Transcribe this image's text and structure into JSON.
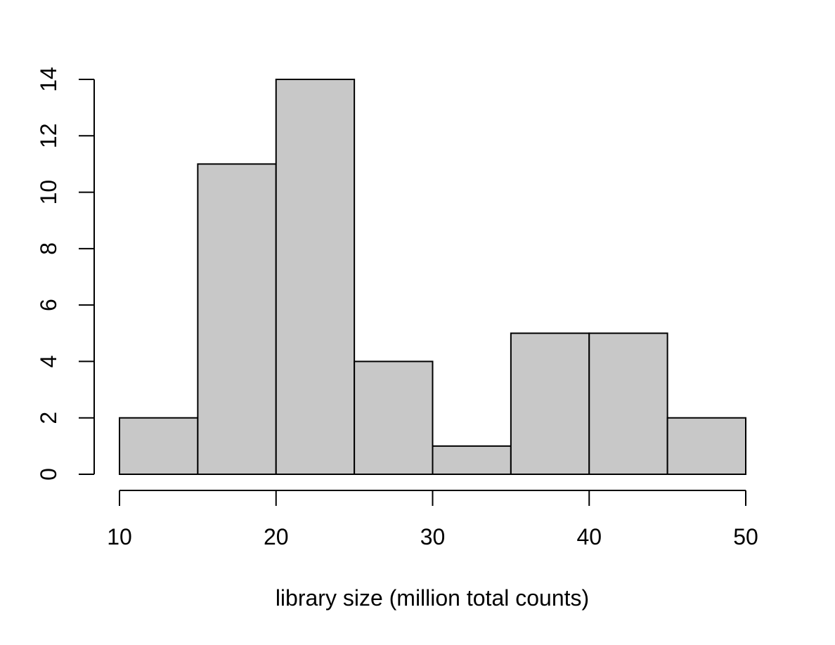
{
  "chart_data": {
    "type": "bar",
    "subtype": "histogram",
    "bins": [
      [
        10,
        15
      ],
      [
        15,
        20
      ],
      [
        20,
        25
      ],
      [
        25,
        30
      ],
      [
        30,
        35
      ],
      [
        35,
        40
      ],
      [
        40,
        45
      ],
      [
        45,
        50
      ]
    ],
    "values": [
      2,
      11,
      14,
      4,
      1,
      5,
      5,
      2
    ],
    "xlabel": "library size (million total counts)",
    "ylabel": "",
    "xlim": [
      10,
      50
    ],
    "ylim": [
      0,
      14
    ],
    "xticks": [
      10,
      20,
      30,
      40,
      50
    ],
    "yticks": [
      0,
      2,
      4,
      6,
      8,
      10,
      12,
      14
    ],
    "bar_fill": "#c8c8c8",
    "bar_stroke": "#000000",
    "grid": false,
    "legend": "none"
  }
}
